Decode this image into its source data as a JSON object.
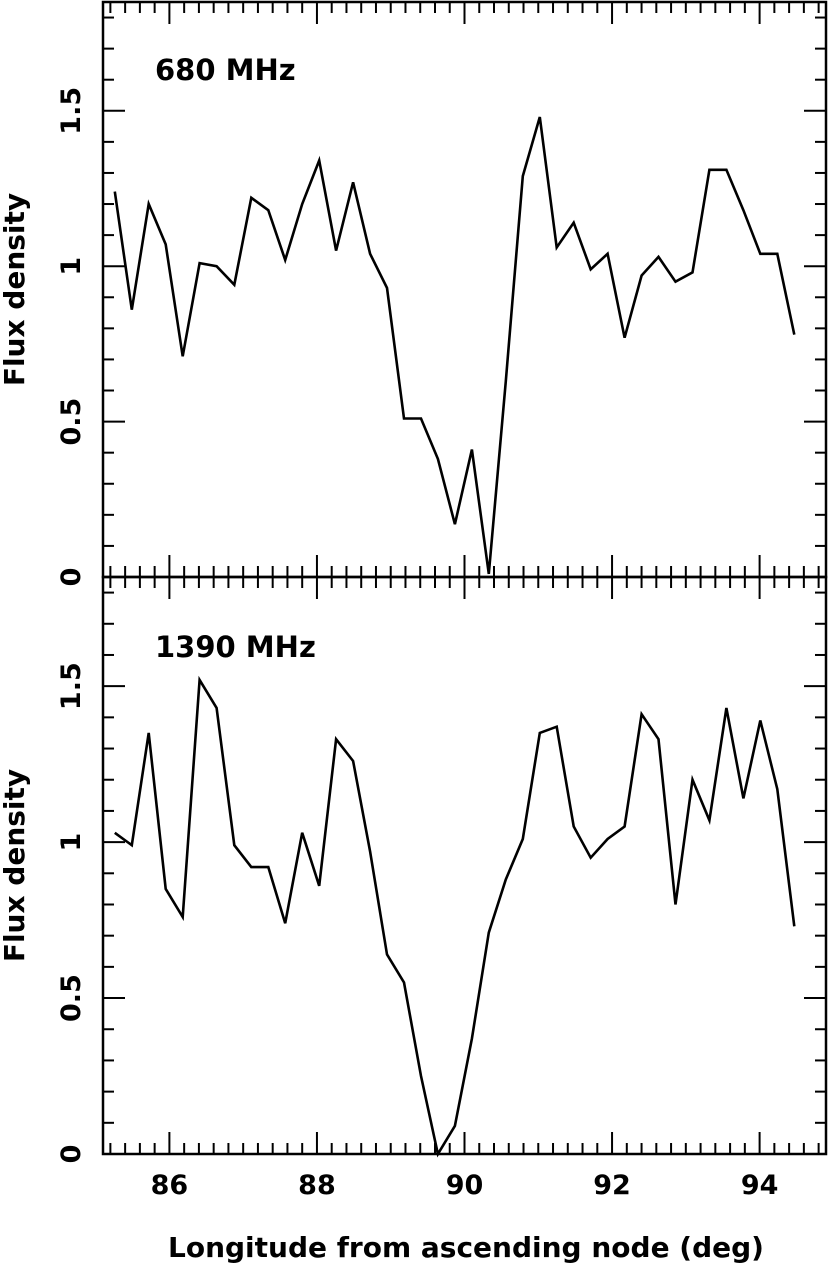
{
  "chart_data": [
    {
      "type": "line",
      "annotation": "680 MHz",
      "xlabel": "Longitude from ascending node (deg)",
      "ylabel": "Flux density",
      "xlim": [
        85.1,
        94.9
      ],
      "ylim": [
        0,
        1.85
      ],
      "x_ticks": [
        86,
        88,
        90,
        92,
        94
      ],
      "y_ticks": [
        0,
        0.5,
        1,
        1.5
      ],
      "y_tick_labels": [
        "0",
        "0.5",
        "1",
        "1.5"
      ],
      "x_tick_labels": [
        "86",
        "88",
        "90",
        "92",
        "94"
      ],
      "grid": false,
      "legend": "none",
      "series": [
        {
          "color": "#000000",
          "x": [
            85.26,
            85.49,
            85.72,
            85.95,
            86.18,
            86.41,
            86.64,
            86.88,
            87.11,
            87.34,
            87.57,
            87.8,
            88.03,
            88.26,
            88.49,
            88.72,
            88.95,
            89.18,
            89.41,
            89.64,
            89.87,
            90.1,
            90.33,
            90.56,
            90.79,
            91.02,
            91.25,
            91.48,
            91.71,
            91.94,
            92.17,
            92.4,
            92.63,
            92.86,
            93.09,
            93.32,
            93.55,
            93.78,
            94.01,
            94.24,
            94.47,
            94.7
          ],
          "y": [
            1.24,
            0.86,
            1.2,
            1.07,
            0.71,
            1.01,
            1.0,
            0.94,
            1.22,
            1.18,
            1.02,
            1.2,
            1.34,
            1.05,
            1.27,
            1.04,
            0.93,
            0.51,
            0.51,
            0.38,
            0.17,
            0.41,
            0.01,
            0.63,
            1.29,
            1.48,
            1.06,
            1.14,
            0.99,
            1.04,
            0.77,
            0.97,
            1.03,
            0.95,
            0.98,
            1.31,
            1.31,
            1.18,
            1.04,
            1.04,
            0.78,
            null
          ]
        }
      ]
    },
    {
      "type": "line",
      "annotation": "1390 MHz",
      "xlabel": "Longitude from ascending node (deg)",
      "ylabel": "Flux density",
      "xlim": [
        85.1,
        94.9
      ],
      "ylim": [
        0,
        1.85
      ],
      "x_ticks": [
        86,
        88,
        90,
        92,
        94
      ],
      "y_ticks": [
        0,
        0.5,
        1,
        1.5
      ],
      "y_tick_labels": [
        "0",
        "0.5",
        "1",
        "1.5"
      ],
      "x_tick_labels": [
        "86",
        "88",
        "90",
        "92",
        "94"
      ],
      "grid": false,
      "legend": "none",
      "series": [
        {
          "color": "#000000",
          "x": [
            85.26,
            85.49,
            85.72,
            85.95,
            86.18,
            86.41,
            86.64,
            86.88,
            87.11,
            87.34,
            87.57,
            87.8,
            88.03,
            88.26,
            88.49,
            88.72,
            88.95,
            89.18,
            89.41,
            89.64,
            89.87,
            90.1,
            90.33,
            90.56,
            90.79,
            91.02,
            91.25,
            91.48,
            91.71,
            91.94,
            92.17,
            92.4,
            92.63,
            92.86,
            93.09,
            93.32,
            93.55,
            93.78,
            94.01,
            94.24,
            94.47,
            94.7
          ],
          "y": [
            1.03,
            0.99,
            1.35,
            0.85,
            0.76,
            1.52,
            1.43,
            0.99,
            0.92,
            0.92,
            0.74,
            1.03,
            0.86,
            1.33,
            1.26,
            0.97,
            0.64,
            0.55,
            0.25,
            0.0,
            0.09,
            0.37,
            0.71,
            0.88,
            1.01,
            1.35,
            1.37,
            1.05,
            0.95,
            1.01,
            1.05,
            1.41,
            1.33,
            0.8,
            1.2,
            1.07,
            1.43,
            1.14,
            1.39,
            1.17,
            0.73,
            null
          ]
        }
      ]
    }
  ]
}
